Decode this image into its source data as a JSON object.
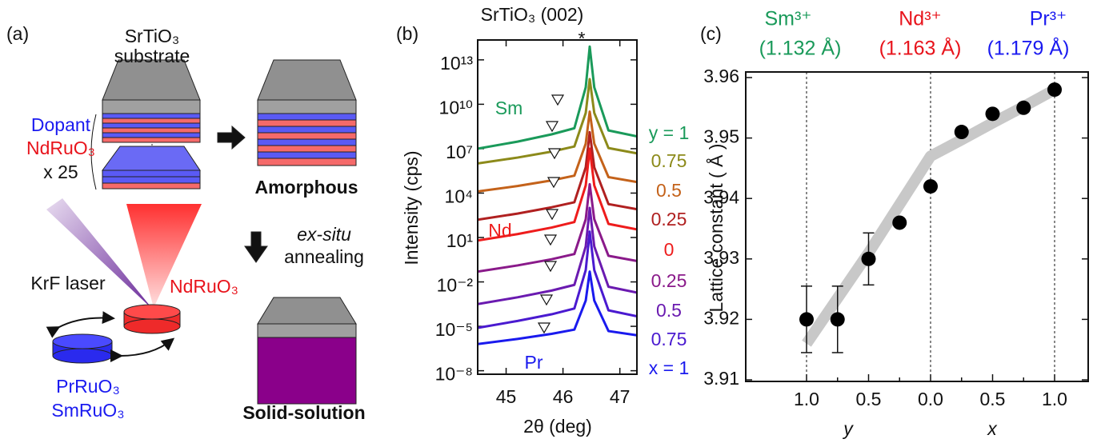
{
  "diagram": {
    "label": "(a)",
    "substrate_formula": "SrTiO₃",
    "substrate_word": "substrate",
    "dopant": "Dopant",
    "host": "NdRuO₃",
    "repeat": "x 25",
    "amorphous": "Amorphous",
    "laser": "KrF laser",
    "target_nd": "NdRuO₃",
    "target_pr": "PrRuO₃",
    "target_sm": "SmRuO₃",
    "anneal_mode": "ex-situ",
    "anneal_word": "annealing",
    "solid_solution": "Solid-solution"
  },
  "chart_data": [
    {
      "type": "line",
      "panel": "(b)",
      "title": "SrTiO₃ (002)",
      "annotation": "*",
      "xlabel": "2θ (deg)",
      "ylabel": "Intensity (cps)",
      "yscale": "log",
      "xlim": [
        44.5,
        47.3
      ],
      "ylim": [
        5.8e-09,
        220000000000000.0
      ],
      "xticks": [
        45,
        46,
        47
      ],
      "yticks": [
        {
          "value": 10000000000000.0,
          "label": "10¹³"
        },
        {
          "value": 10000000000.0,
          "label": "10¹⁰"
        },
        {
          "value": 10000000.0,
          "label": "10⁷"
        },
        {
          "value": 10000.0,
          "label": "10⁴"
        },
        {
          "value": 10,
          "label": "10¹"
        },
        {
          "value": 0.01,
          "label": "10⁻²"
        },
        {
          "value": 1e-05,
          "label": "10⁻⁵"
        },
        {
          "value": 1e-08,
          "label": "10⁻⁸"
        }
      ],
      "annotations": [
        "Sm",
        "Nd",
        "Pr"
      ],
      "x": [
        44.5,
        45.2,
        45.8,
        46.2,
        46.4,
        46.47,
        46.55,
        46.8,
        47.3
      ],
      "series": [
        {
          "name": "y = 1",
          "color": "#1a9a5a",
          "values": [
            10000000.0,
            30000000.0,
            93000000.0,
            240000000.0,
            140000000000.0,
            79000000000000.0,
            140000000000.0,
            170000000.0,
            68000000.0
          ]
        },
        {
          "name": "0.75",
          "color": "#8c8a1a",
          "values": [
            1000000.0,
            2500000.0,
            6300000.0,
            14000000.0,
            2600000000.0,
            500000000000.0,
            2600000000.0,
            11000000.0,
            4800000.0
          ]
        },
        {
          "name": "0.5",
          "color": "#c4621a",
          "values": [
            13000.0,
            30000.0,
            72000.0,
            150000.0,
            22000000.0,
            3200000000.0,
            22000000.0,
            120000.0,
            56000.0
          ]
        },
        {
          "name": "0.25",
          "color": "#b02020",
          "values": [
            160,
            410,
            1100,
            2400,
            550000.0,
            130000000.0,
            550000.0,
            1800,
            810
          ]
        },
        {
          "name": "0",
          "color": "#ee1c1c",
          "values": [
            6.3,
            17,
            47,
            110,
            33000.0,
            10000000.0,
            33000.0,
            83,
            35
          ]
        },
        {
          "name": "0.25",
          "color": "#8a1a8a",
          "values": [
            0.05,
            0.13,
            0.34,
            0.76,
            170,
            40000.0,
            170,
            0.58,
            0.26
          ]
        },
        {
          "name": "0.5",
          "color": "#6a1ab0",
          "values": [
            0.00032,
            0.00091,
            0.0026,
            0.0063,
            2.5,
            1000,
            2.5,
            0.0047,
            0.0019
          ]
        },
        {
          "name": "0.75",
          "color": "#4a1ad0",
          "values": [
            7.9e-06,
            2.3e-05,
            6.5e-05,
            0.00016,
            0.063,
            25,
            0.063,
            0.00012,
            4.8e-05
          ]
        },
        {
          "name": "x = 1",
          "color": "#1a1aee",
          "values": [
            6.3e-07,
            1.4e-06,
            3.1e-06,
            6e-06,
            0.00055,
            0.05,
            0.00055,
            4.8e-06,
            2.5e-06
          ]
        }
      ]
    },
    {
      "type": "scatter",
      "panel": "(c)",
      "ylabel": "Lattice constant ( Å )",
      "xlabels": [
        "y",
        "x"
      ],
      "ions": [
        {
          "name": "Sm³⁺",
          "radius": "(1.132 Å)",
          "color": "#1a9a5a"
        },
        {
          "name": "Nd³⁺",
          "radius": "(1.163 Å)",
          "color": "#e8141c"
        },
        {
          "name": "Pr³⁺",
          "radius": "(1.179 Å)",
          "color": "#1a1af0"
        }
      ],
      "categories": [
        "1.0",
        null,
        "0.5",
        null,
        "0.0",
        null,
        "0.5",
        null,
        "1.0"
      ],
      "values": [
        3.92,
        3.92,
        3.93,
        3.936,
        3.942,
        3.951,
        3.954,
        3.955,
        3.958
      ],
      "errors": [
        0.0055,
        0.0055,
        0.0043,
        null,
        null,
        null,
        null,
        null,
        null
      ],
      "trend": [
        3.916,
        3.9235,
        3.931,
        3.939,
        3.947,
        3.9497,
        3.9525,
        3.9552,
        3.958
      ],
      "color": "#000000",
      "trend_color": "#c8c8c8",
      "ylim": [
        3.91,
        3.96
      ],
      "yticks": [
        3.91,
        3.92,
        3.93,
        3.94,
        3.95,
        3.96
      ]
    }
  ]
}
